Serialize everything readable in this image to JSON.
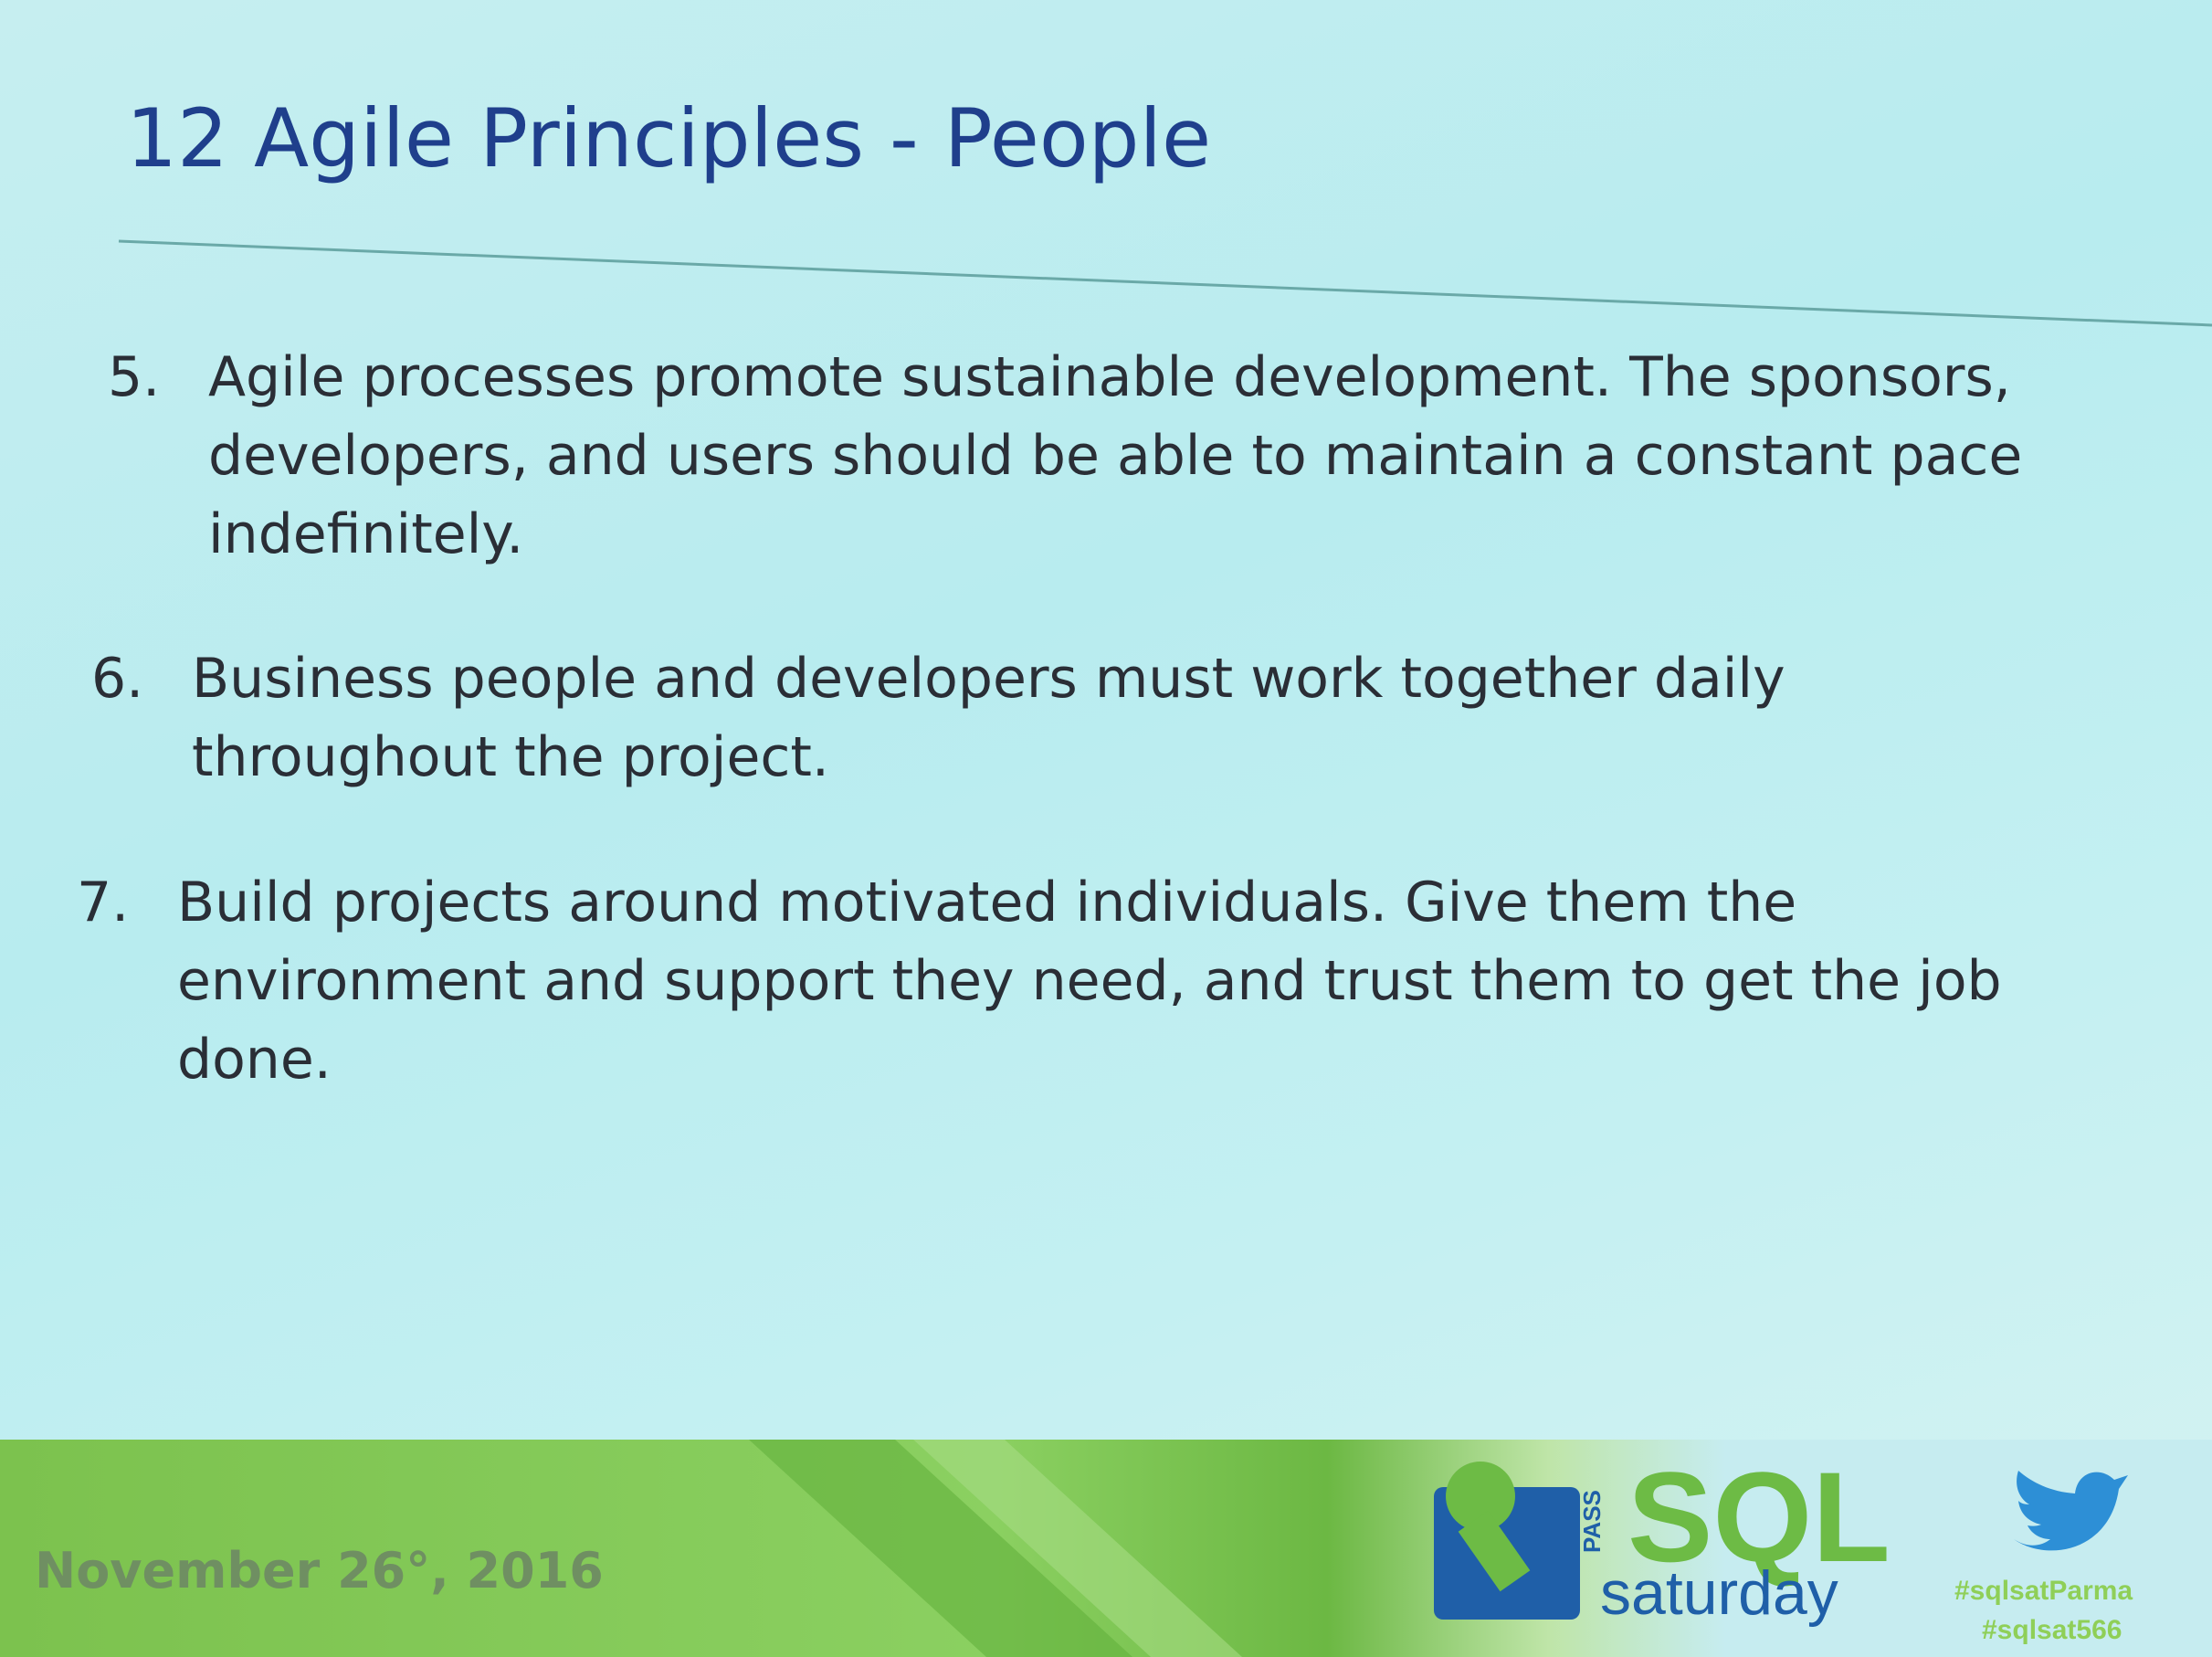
{
  "header": {
    "title": "12 Agile Principles - People"
  },
  "items": [
    {
      "number": "5.",
      "text": "Agile processes promote sustainable development. The sponsors, developers, and users should be able to maintain a constant pace indefinitely."
    },
    {
      "number": "6.",
      "text": "Business people and developers must work together daily throughout the project."
    },
    {
      "number": "7.",
      "text": "Build projects around motivated individuals. Give them the environment and support they need, and trust them to get the job done."
    }
  ],
  "footer": {
    "date": "November 26°, 2016",
    "logo": {
      "pass": "PASS",
      "sql": "SQL",
      "saturday": "saturday"
    },
    "hashtags": [
      "#sqlsatParma",
      "#sqlsat566"
    ]
  }
}
